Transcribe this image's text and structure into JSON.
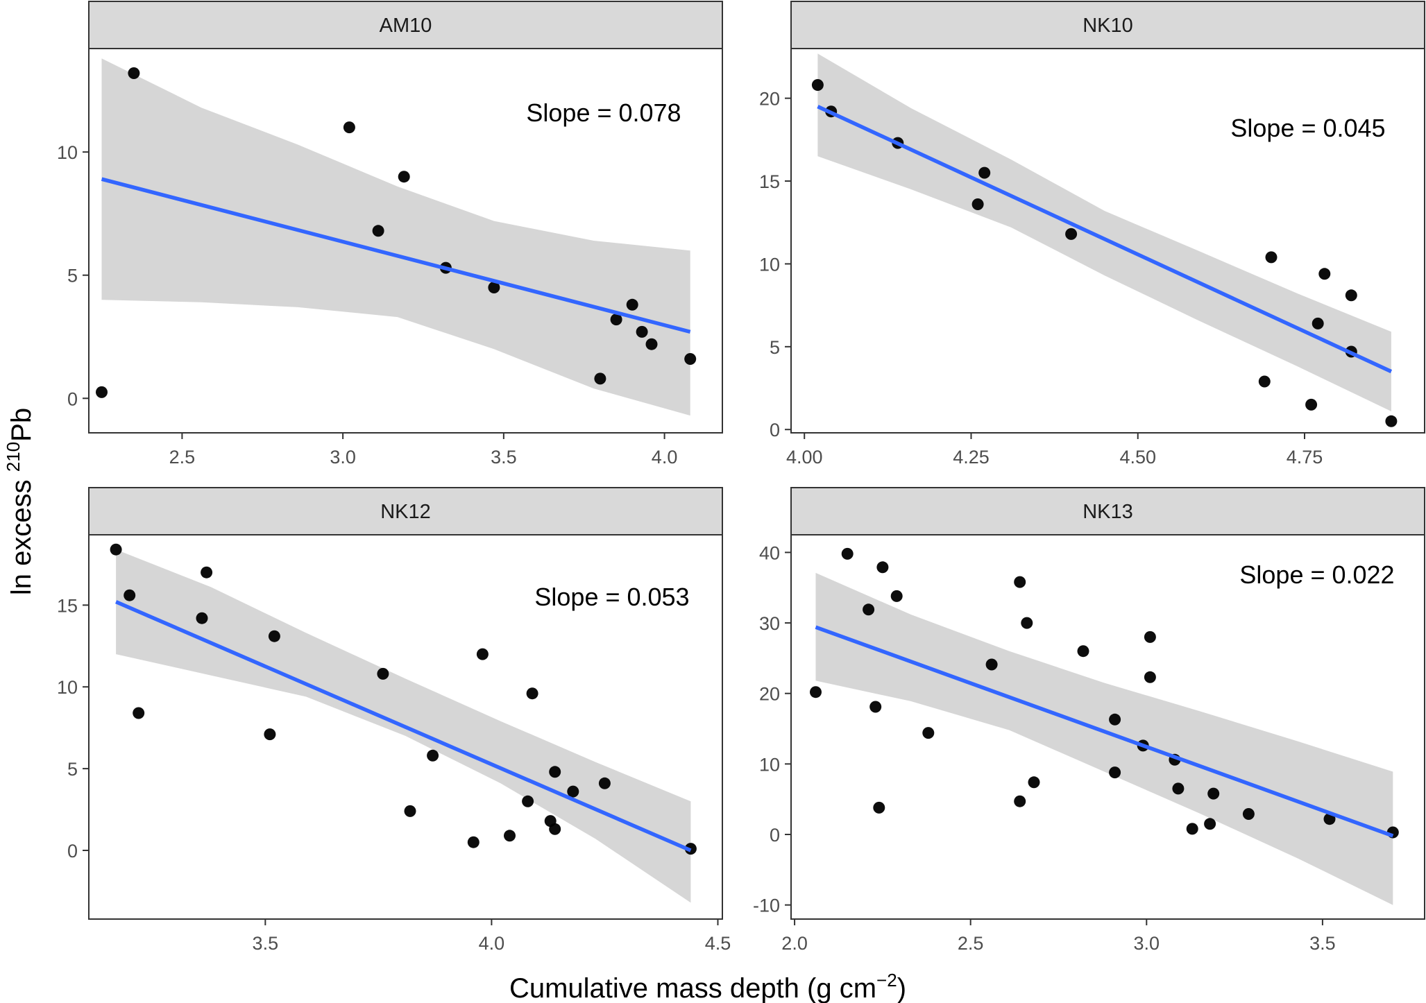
{
  "figure": {
    "xlabel_main": "Cumulative mass depth (g cm",
    "xlabel_sup": "−2",
    "xlabel_end": ")",
    "ylabel_main": "ln excess ",
    "ylabel_sup": "210",
    "ylabel_end": "Pb"
  },
  "colors": {
    "fit_line": "#3366FF",
    "ribbon": "#d6d6d6",
    "points": "#000000",
    "strip": "#d9d9d9",
    "panel_border": "#333333"
  },
  "chart_data": [
    {
      "type": "scatter",
      "facet": "AM10",
      "annotation": "Slope = 0.078",
      "xlim": [
        2.21,
        4.18
      ],
      "ylim": [
        -1.4,
        14.2
      ],
      "xticks": [
        "2.5",
        "3.0",
        "3.5",
        "4.0"
      ],
      "xtick_values": [
        2.5,
        3.0,
        3.5,
        4.0
      ],
      "yticks": [
        "0",
        "5",
        "10"
      ],
      "ytick_values": [
        0,
        5,
        10
      ],
      "x": [
        2.25,
        2.35,
        3.02,
        3.11,
        3.19,
        3.32,
        3.47,
        3.8,
        3.85,
        3.9,
        3.93,
        3.96,
        4.08
      ],
      "y": [
        0.25,
        13.2,
        11.0,
        6.8,
        9.0,
        5.3,
        4.5,
        0.8,
        3.2,
        3.8,
        2.7,
        2.2,
        1.6
      ],
      "fit": {
        "x": [
          2.25,
          4.08
        ],
        "y": [
          8.9,
          2.7
        ]
      },
      "ribbon": {
        "x": [
          2.25,
          2.56,
          2.86,
          3.17,
          3.47,
          3.78,
          4.08
        ],
        "upper": [
          13.8,
          11.8,
          10.3,
          8.6,
          7.2,
          6.4,
          6.0
        ],
        "lower": [
          4.0,
          3.9,
          3.7,
          3.3,
          2.0,
          0.4,
          -0.7
        ]
      }
    },
    {
      "type": "scatter",
      "facet": "NK10",
      "annotation": "Slope = 0.045",
      "xlim": [
        3.98,
        4.93
      ],
      "ylim": [
        -0.2,
        23.0
      ],
      "xticks": [
        "4.00",
        "4.25",
        "4.50",
        "4.75"
      ],
      "xtick_values": [
        4.0,
        4.25,
        4.5,
        4.75
      ],
      "yticks": [
        "0",
        "5",
        "10",
        "15",
        "20"
      ],
      "ytick_values": [
        0,
        5,
        10,
        15,
        20
      ],
      "x": [
        4.02,
        4.04,
        4.14,
        4.26,
        4.27,
        4.4,
        4.69,
        4.7,
        4.76,
        4.77,
        4.78,
        4.82,
        4.82,
        4.88
      ],
      "y": [
        20.8,
        19.2,
        17.3,
        13.6,
        15.5,
        11.8,
        2.9,
        10.4,
        1.5,
        6.4,
        9.4,
        8.1,
        4.7,
        0.5
      ],
      "fit": {
        "x": [
          4.02,
          4.88
        ],
        "y": [
          19.5,
          3.5
        ]
      },
      "ribbon": {
        "x": [
          4.02,
          4.16,
          4.31,
          4.45,
          4.59,
          4.74,
          4.88
        ],
        "upper": [
          22.7,
          19.4,
          16.3,
          13.2,
          10.8,
          8.2,
          5.9
        ],
        "lower": [
          16.5,
          14.5,
          12.2,
          9.3,
          6.6,
          3.8,
          1.1
        ]
      }
    },
    {
      "type": "scatter",
      "facet": "NK12",
      "annotation": "Slope = 0.053",
      "xlim": [
        3.11,
        4.51
      ],
      "ylim": [
        -4.2,
        19.3
      ],
      "xticks": [
        "3.5",
        "4.0",
        "4.5"
      ],
      "xtick_values": [
        3.5,
        4.0,
        4.5
      ],
      "yticks": [
        "0",
        "5",
        "10",
        "15"
      ],
      "ytick_values": [
        0,
        5,
        10,
        15
      ],
      "x": [
        3.17,
        3.2,
        3.22,
        3.36,
        3.37,
        3.51,
        3.52,
        3.76,
        3.82,
        3.87,
        3.96,
        3.98,
        4.04,
        4.08,
        4.09,
        4.13,
        4.14,
        4.14,
        4.18,
        4.25,
        4.44
      ],
      "y": [
        18.4,
        15.6,
        8.4,
        14.2,
        17.0,
        7.1,
        13.1,
        10.8,
        2.4,
        5.8,
        0.5,
        12.0,
        0.9,
        3.0,
        9.6,
        1.8,
        1.3,
        4.8,
        3.6,
        4.1,
        0.1
      ],
      "fit": {
        "x": [
          3.17,
          4.44
        ],
        "y": [
          15.2,
          0.0
        ]
      },
      "ribbon": {
        "x": [
          3.17,
          3.38,
          3.59,
          3.81,
          4.02,
          4.23,
          4.44
        ],
        "upper": [
          18.4,
          16.1,
          13.3,
          10.5,
          7.9,
          5.4,
          3.0
        ],
        "lower": [
          12.0,
          10.7,
          9.4,
          7.0,
          4.1,
          0.7,
          -3.2
        ]
      }
    },
    {
      "type": "scatter",
      "facet": "NK13",
      "annotation": "Slope = 0.022",
      "xlim": [
        1.99,
        3.79
      ],
      "ylim": [
        -12.0,
        42.5
      ],
      "xticks": [
        "2.0",
        "2.5",
        "3.0",
        "3.5"
      ],
      "xtick_values": [
        2.0,
        2.5,
        3.0,
        3.5
      ],
      "yticks": [
        "-10",
        "0",
        "10",
        "20",
        "30",
        "40"
      ],
      "ytick_values": [
        -10,
        0,
        10,
        20,
        30,
        40
      ],
      "x": [
        2.06,
        2.15,
        2.21,
        2.23,
        2.24,
        2.25,
        2.29,
        2.38,
        2.56,
        2.64,
        2.64,
        2.66,
        2.68,
        2.82,
        2.91,
        2.91,
        2.99,
        3.01,
        3.01,
        3.08,
        3.09,
        3.13,
        3.18,
        3.19,
        3.29,
        3.52,
        3.7
      ],
      "y": [
        20.2,
        39.8,
        31.9,
        18.1,
        3.8,
        37.9,
        33.8,
        14.4,
        24.1,
        35.8,
        4.7,
        30.0,
        7.4,
        26.0,
        16.3,
        8.8,
        12.6,
        28.0,
        22.3,
        10.6,
        6.5,
        0.8,
        1.5,
        5.8,
        2.9,
        2.2,
        0.3
      ],
      "fit": {
        "x": [
          2.06,
          3.7
        ],
        "y": [
          29.4,
          -0.2
        ]
      },
      "ribbon": {
        "x": [
          2.06,
          2.33,
          2.61,
          2.88,
          3.15,
          3.43,
          3.7
        ],
        "upper": [
          37.1,
          31.2,
          26.0,
          21.5,
          17.5,
          13.2,
          8.9
        ],
        "lower": [
          21.8,
          18.9,
          14.8,
          8.9,
          3.0,
          -3.4,
          -10.0
        ]
      }
    }
  ]
}
